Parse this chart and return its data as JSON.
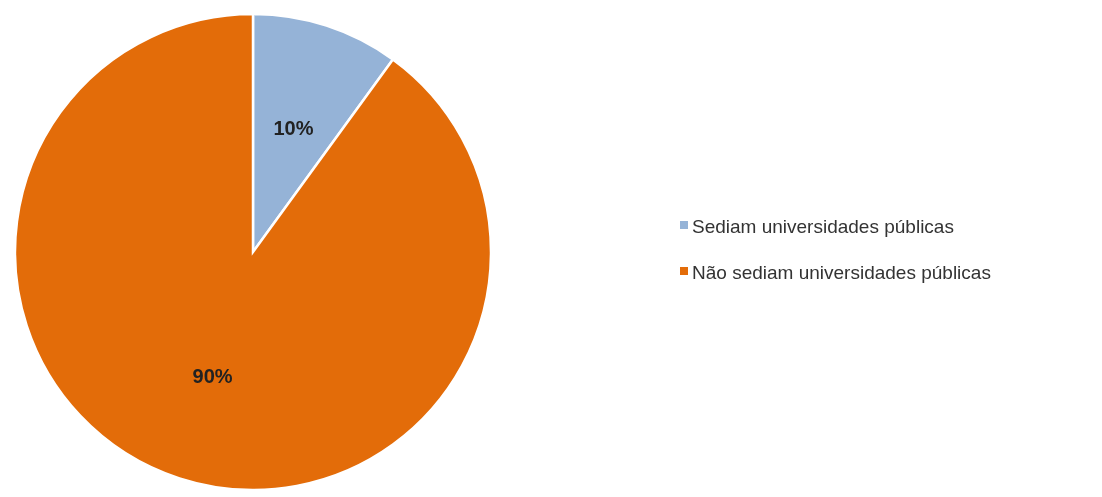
{
  "chart_data": {
    "type": "pie",
    "categories": [
      "Sediam universidades públicas",
      "Não sediam universidades públicas"
    ],
    "values": [
      10,
      90
    ],
    "colors": [
      "#95b3d7",
      "#e36c09"
    ],
    "value_labels": [
      "10%",
      "90%"
    ],
    "legend": "right"
  }
}
